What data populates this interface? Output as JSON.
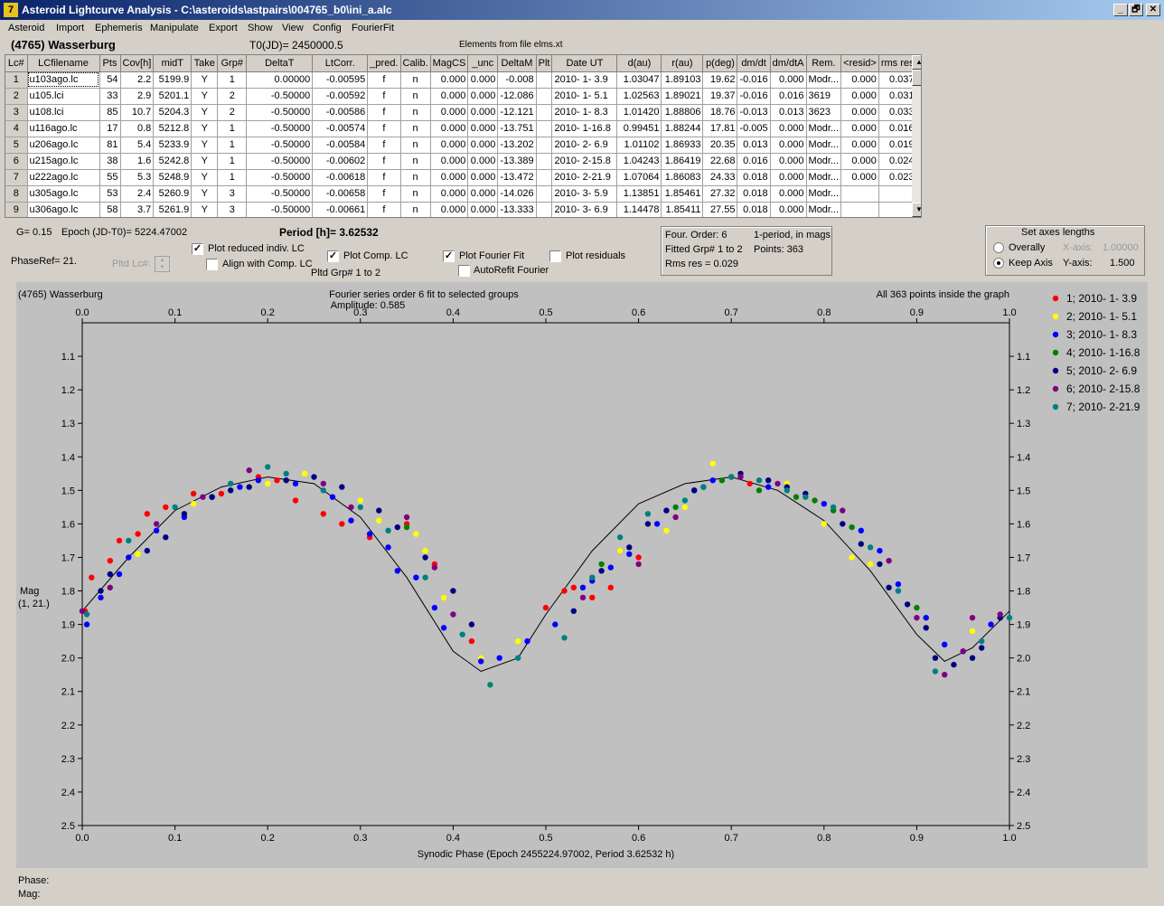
{
  "window": {
    "title": "Asteroid Lightcurve Analysis - C:\\asteroids\\astpairs\\004765_b0\\ini_a.alc",
    "buttons": [
      "_",
      "🗗",
      "✕"
    ]
  },
  "menu": [
    "Asteroid",
    "Import",
    "Ephemeris",
    "Manipulate",
    "Export",
    "Show",
    "View",
    "Config",
    "FourierFit"
  ],
  "header": {
    "object": "(4765) Wasserburg",
    "t0": "T0(JD)= 2450000.5",
    "elements": "Elements from file elms.xt"
  },
  "grid": {
    "columns": [
      "Lc#",
      "LCfilename",
      "Pts",
      "Cov[h]",
      "midT",
      "Take",
      "Grp#",
      "DeltaT",
      "LtCorr.",
      "_pred.",
      "Calib.",
      "MagCS",
      "_unc",
      "DeltaM",
      "Plt",
      "Date UT",
      "d(au)",
      "r(au)",
      "p(deg)",
      "dm/dt",
      "dm/dtA",
      "Rem.",
      "<resid>",
      "rms res"
    ],
    "rows": [
      [
        "1",
        "u103ago.lc",
        "54",
        "2.2",
        "5199.9",
        "Y",
        "1",
        "0.00000",
        "-0.00595",
        "f",
        "n",
        "0.000",
        "0.000",
        "-0.008",
        "",
        "2010- 1- 3.9",
        "1.03047",
        "1.89103",
        "19.62",
        "-0.016",
        "0.000",
        "Modr...",
        "0.000",
        "0.037"
      ],
      [
        "2",
        "u105.lci",
        "33",
        "2.9",
        "5201.1",
        "Y",
        "2",
        "-0.50000",
        "-0.00592",
        "f",
        "n",
        "0.000",
        "0.000",
        "-12.086",
        "",
        "2010- 1- 5.1",
        "1.02563",
        "1.89021",
        "19.37",
        "-0.016",
        "0.016",
        "3619",
        "0.000",
        "0.031"
      ],
      [
        "3",
        "u108.lci",
        "85",
        "10.7",
        "5204.3",
        "Y",
        "2",
        "-0.50000",
        "-0.00586",
        "f",
        "n",
        "0.000",
        "0.000",
        "-12.121",
        "",
        "2010- 1- 8.3",
        "1.01420",
        "1.88806",
        "18.76",
        "-0.013",
        "0.013",
        "3623",
        "0.000",
        "0.033"
      ],
      [
        "4",
        "u116ago.lc",
        "17",
        "0.8",
        "5212.8",
        "Y",
        "1",
        "-0.50000",
        "-0.00574",
        "f",
        "n",
        "0.000",
        "0.000",
        "-13.751",
        "",
        "2010- 1-16.8",
        "0.99451",
        "1.88244",
        "17.81",
        "-0.005",
        "0.000",
        "Modr...",
        "0.000",
        "0.016"
      ],
      [
        "5",
        "u206ago.lc",
        "81",
        "5.4",
        "5233.9",
        "Y",
        "1",
        "-0.50000",
        "-0.00584",
        "f",
        "n",
        "0.000",
        "0.000",
        "-13.202",
        "",
        "2010- 2- 6.9",
        "1.01102",
        "1.86933",
        "20.35",
        "0.013",
        "0.000",
        "Modr...",
        "0.000",
        "0.019"
      ],
      [
        "6",
        "u215ago.lc",
        "38",
        "1.6",
        "5242.8",
        "Y",
        "1",
        "-0.50000",
        "-0.00602",
        "f",
        "n",
        "0.000",
        "0.000",
        "-13.389",
        "",
        "2010- 2-15.8",
        "1.04243",
        "1.86419",
        "22.68",
        "0.016",
        "0.000",
        "Modr...",
        "0.000",
        "0.024"
      ],
      [
        "7",
        "u222ago.lc",
        "55",
        "5.3",
        "5248.9",
        "Y",
        "1",
        "-0.50000",
        "-0.00618",
        "f",
        "n",
        "0.000",
        "0.000",
        "-13.472",
        "",
        "2010- 2-21.9",
        "1.07064",
        "1.86083",
        "24.33",
        "0.018",
        "0.000",
        "Modr...",
        "0.000",
        "0.023"
      ],
      [
        "8",
        "u305ago.lc",
        "53",
        "2.4",
        "5260.9",
        "Y",
        "3",
        "-0.50000",
        "-0.00658",
        "f",
        "n",
        "0.000",
        "0.000",
        "-14.026",
        "",
        "2010- 3- 5.9",
        "1.13851",
        "1.85461",
        "27.32",
        "0.018",
        "0.000",
        "Modr...",
        "",
        ""
      ],
      [
        "9",
        "u306ago.lc",
        "58",
        "3.7",
        "5261.9",
        "Y",
        "3",
        "-0.50000",
        "-0.00661",
        "f",
        "n",
        "0.000",
        "0.000",
        "-13.333",
        "",
        "2010- 3- 6.9",
        "1.14478",
        "1.85411",
        "27.55",
        "0.018",
        "0.000",
        "Modr...",
        "",
        ""
      ]
    ]
  },
  "controls": {
    "g_value": "G= 0.15",
    "epoch": "Epoch (JD-T0)= 5224.47002",
    "period": "Period [h]= 3.62532",
    "phaseref": "PhaseRef= 21.",
    "pltd_lc": "Pltd Lc#:",
    "plot_reduced": "Plot reduced indiv. LC",
    "align_comp": "Align with Comp. LC",
    "plot_comp": "Plot Comp. LC",
    "pltd_grp": "Pltd Grp#  1   to   2",
    "plot_fourier": "Plot Fourier Fit",
    "autorefit": "AutoRefit Fourier",
    "plot_residuals": "Plot residuals",
    "checks": {
      "plot_reduced": true,
      "align_comp": false,
      "plot_comp": true,
      "plot_fourier": true,
      "autorefit": false,
      "plot_residuals": false
    }
  },
  "fourier_info": {
    "order": "Four. Order:  6",
    "mode": "1-period, in mags",
    "fitted": "Fitted Grp# 1 to 2",
    "points": "Points: 363",
    "rms": "Rms res      = 0.029"
  },
  "axes_box": {
    "title": "Set axes lengths",
    "overally": "Overally",
    "keep_axis": "Keep Axis",
    "x_axis_label": "X-axis:",
    "x_axis_value": "1.00000",
    "y_axis_label": "Y-axis:",
    "y_axis_value": "1.500",
    "selected": "keep_axis"
  },
  "plot": {
    "object": "(4765) Wasserburg",
    "fit_title": "Fourier series order 6 fit to selected groups",
    "amplitude": "Amplitude: 0.585",
    "inside": "All 363 points inside the graph",
    "ylabel_1": "Mag",
    "ylabel_2": "(1, 21.)",
    "xlabel": "Synodic Phase (Epoch 2455224.97002, Period 3.62532 h)",
    "x_ticks": [
      "0.0",
      "0.1",
      "0.2",
      "0.3",
      "0.4",
      "0.5",
      "0.6",
      "0.7",
      "0.8",
      "0.9",
      "1.0"
    ],
    "y_ticks": [
      "1.1",
      "1.2",
      "1.3",
      "1.4",
      "1.5",
      "1.6",
      "1.7",
      "1.8",
      "1.9",
      "2.0",
      "2.1",
      "2.2",
      "2.3",
      "2.4",
      "2.5"
    ]
  },
  "chart_data": {
    "type": "scatter",
    "xlim": [
      0.0,
      1.0
    ],
    "ylim": [
      2.5,
      1.0
    ],
    "y_inverted": true,
    "grid": false,
    "legend_position": "right",
    "fit_curve": {
      "x": [
        0.0,
        0.05,
        0.1,
        0.15,
        0.2,
        0.25,
        0.3,
        0.35,
        0.4,
        0.43,
        0.47,
        0.5,
        0.55,
        0.6,
        0.65,
        0.7,
        0.75,
        0.8,
        0.85,
        0.9,
        0.93,
        0.96,
        1.0
      ],
      "y": [
        1.86,
        1.7,
        1.56,
        1.49,
        1.46,
        1.48,
        1.58,
        1.76,
        1.98,
        2.04,
        2.0,
        1.87,
        1.68,
        1.54,
        1.48,
        1.46,
        1.5,
        1.59,
        1.74,
        1.93,
        2.01,
        1.97,
        1.86
      ]
    },
    "series": [
      {
        "name": "1; 2010- 1- 3.9",
        "color": "#ff0000",
        "x": [
          0.003,
          0.01,
          0.03,
          0.04,
          0.06,
          0.07,
          0.09,
          0.12,
          0.15,
          0.19,
          0.21,
          0.23,
          0.26,
          0.28,
          0.31,
          0.35,
          0.38,
          0.42,
          0.5,
          0.52,
          0.53,
          0.55,
          0.57,
          0.58,
          0.6,
          0.72
        ],
        "y": [
          1.86,
          1.76,
          1.71,
          1.65,
          1.63,
          1.57,
          1.55,
          1.51,
          1.51,
          1.46,
          1.47,
          1.53,
          1.57,
          1.6,
          1.64,
          1.6,
          1.72,
          1.95,
          1.85,
          1.8,
          1.79,
          1.82,
          1.79,
          1.68,
          1.7,
          1.48
        ]
      },
      {
        "name": "2; 2010- 1- 5.1",
        "color": "#ffff00",
        "x": [
          0.06,
          0.12,
          0.2,
          0.24,
          0.3,
          0.32,
          0.36,
          0.37,
          0.39,
          0.43,
          0.44,
          0.47,
          0.58,
          0.63,
          0.65,
          0.68,
          0.76,
          0.78,
          0.8,
          0.83,
          0.85,
          0.96
        ],
        "y": [
          1.69,
          1.54,
          1.48,
          1.45,
          1.53,
          1.59,
          1.63,
          1.68,
          1.82,
          2.0,
          2.08,
          1.95,
          1.68,
          1.62,
          1.55,
          1.42,
          1.48,
          1.52,
          1.6,
          1.7,
          1.72,
          1.92
        ]
      },
      {
        "name": "3; 2010- 1- 8.3",
        "color": "#0000ff",
        "x": [
          0.005,
          0.02,
          0.04,
          0.05,
          0.08,
          0.11,
          0.14,
          0.17,
          0.19,
          0.23,
          0.27,
          0.29,
          0.31,
          0.33,
          0.34,
          0.36,
          0.38,
          0.39,
          0.43,
          0.45,
          0.48,
          0.51,
          0.54,
          0.55,
          0.57,
          0.59,
          0.62,
          0.66,
          0.68,
          0.74,
          0.8,
          0.84,
          0.86,
          0.88,
          0.91,
          0.93,
          0.95,
          0.98
        ],
        "y": [
          1.9,
          1.82,
          1.75,
          1.7,
          1.62,
          1.58,
          1.52,
          1.49,
          1.47,
          1.48,
          1.52,
          1.59,
          1.63,
          1.67,
          1.74,
          1.76,
          1.85,
          1.91,
          2.01,
          2.0,
          1.95,
          1.9,
          1.79,
          1.77,
          1.73,
          1.69,
          1.6,
          1.5,
          1.47,
          1.49,
          1.54,
          1.62,
          1.68,
          1.78,
          1.88,
          1.96,
          1.98,
          1.9
        ]
      },
      {
        "name": "4; 2010- 1-16.8",
        "color": "#008000",
        "x": [
          0.35,
          0.56,
          0.64,
          0.69,
          0.73,
          0.77,
          0.79,
          0.81,
          0.83,
          0.9
        ],
        "y": [
          1.61,
          1.72,
          1.55,
          1.47,
          1.5,
          1.52,
          1.53,
          1.56,
          1.61,
          1.85
        ]
      },
      {
        "name": "5; 2010- 2- 6.9",
        "color": "#000080",
        "x": [
          0.02,
          0.03,
          0.07,
          0.09,
          0.11,
          0.14,
          0.16,
          0.18,
          0.22,
          0.25,
          0.28,
          0.32,
          0.34,
          0.37,
          0.4,
          0.42,
          0.53,
          0.56,
          0.59,
          0.61,
          0.63,
          0.66,
          0.67,
          0.7,
          0.71,
          0.74,
          0.76,
          0.78,
          0.82,
          0.84,
          0.86,
          0.87,
          0.89,
          0.91,
          0.92,
          0.94,
          0.96,
          0.97,
          0.99
        ],
        "y": [
          1.8,
          1.75,
          1.68,
          1.64,
          1.57,
          1.52,
          1.5,
          1.49,
          1.47,
          1.46,
          1.49,
          1.56,
          1.61,
          1.7,
          1.8,
          1.9,
          1.86,
          1.74,
          1.67,
          1.6,
          1.56,
          1.5,
          1.49,
          1.46,
          1.45,
          1.47,
          1.49,
          1.51,
          1.6,
          1.66,
          1.72,
          1.79,
          1.84,
          1.91,
          2.0,
          2.02,
          2.0,
          1.97,
          1.88
        ]
      },
      {
        "name": "6; 2010- 2-15.8",
        "color": "#800080",
        "x": [
          0.0,
          0.03,
          0.08,
          0.13,
          0.18,
          0.26,
          0.29,
          0.35,
          0.38,
          0.4,
          0.54,
          0.6,
          0.64,
          0.71,
          0.75,
          0.82,
          0.87,
          0.9,
          0.93,
          0.95,
          0.96,
          0.99
        ],
        "y": [
          1.86,
          1.79,
          1.6,
          1.52,
          1.44,
          1.48,
          1.55,
          1.58,
          1.73,
          1.87,
          1.82,
          1.72,
          1.58,
          1.46,
          1.48,
          1.56,
          1.71,
          1.88,
          2.05,
          1.98,
          1.88,
          1.87
        ]
      },
      {
        "name": "7; 2010- 2-21.9",
        "color": "#008080",
        "x": [
          0.005,
          0.05,
          0.1,
          0.16,
          0.2,
          0.22,
          0.26,
          0.3,
          0.33,
          0.37,
          0.41,
          0.44,
          0.47,
          0.52,
          0.55,
          0.58,
          0.61,
          0.65,
          0.67,
          0.7,
          0.73,
          0.76,
          0.78,
          0.81,
          0.85,
          0.88,
          0.92,
          0.97,
          1.0
        ],
        "y": [
          1.87,
          1.65,
          1.55,
          1.48,
          1.43,
          1.45,
          1.5,
          1.55,
          1.62,
          1.76,
          1.93,
          2.08,
          2.0,
          1.94,
          1.76,
          1.64,
          1.57,
          1.53,
          1.49,
          1.46,
          1.47,
          1.5,
          1.52,
          1.55,
          1.67,
          1.8,
          2.04,
          1.95,
          1.88
        ]
      }
    ]
  },
  "status": {
    "phase": "Phase:",
    "mag": "Mag:"
  }
}
